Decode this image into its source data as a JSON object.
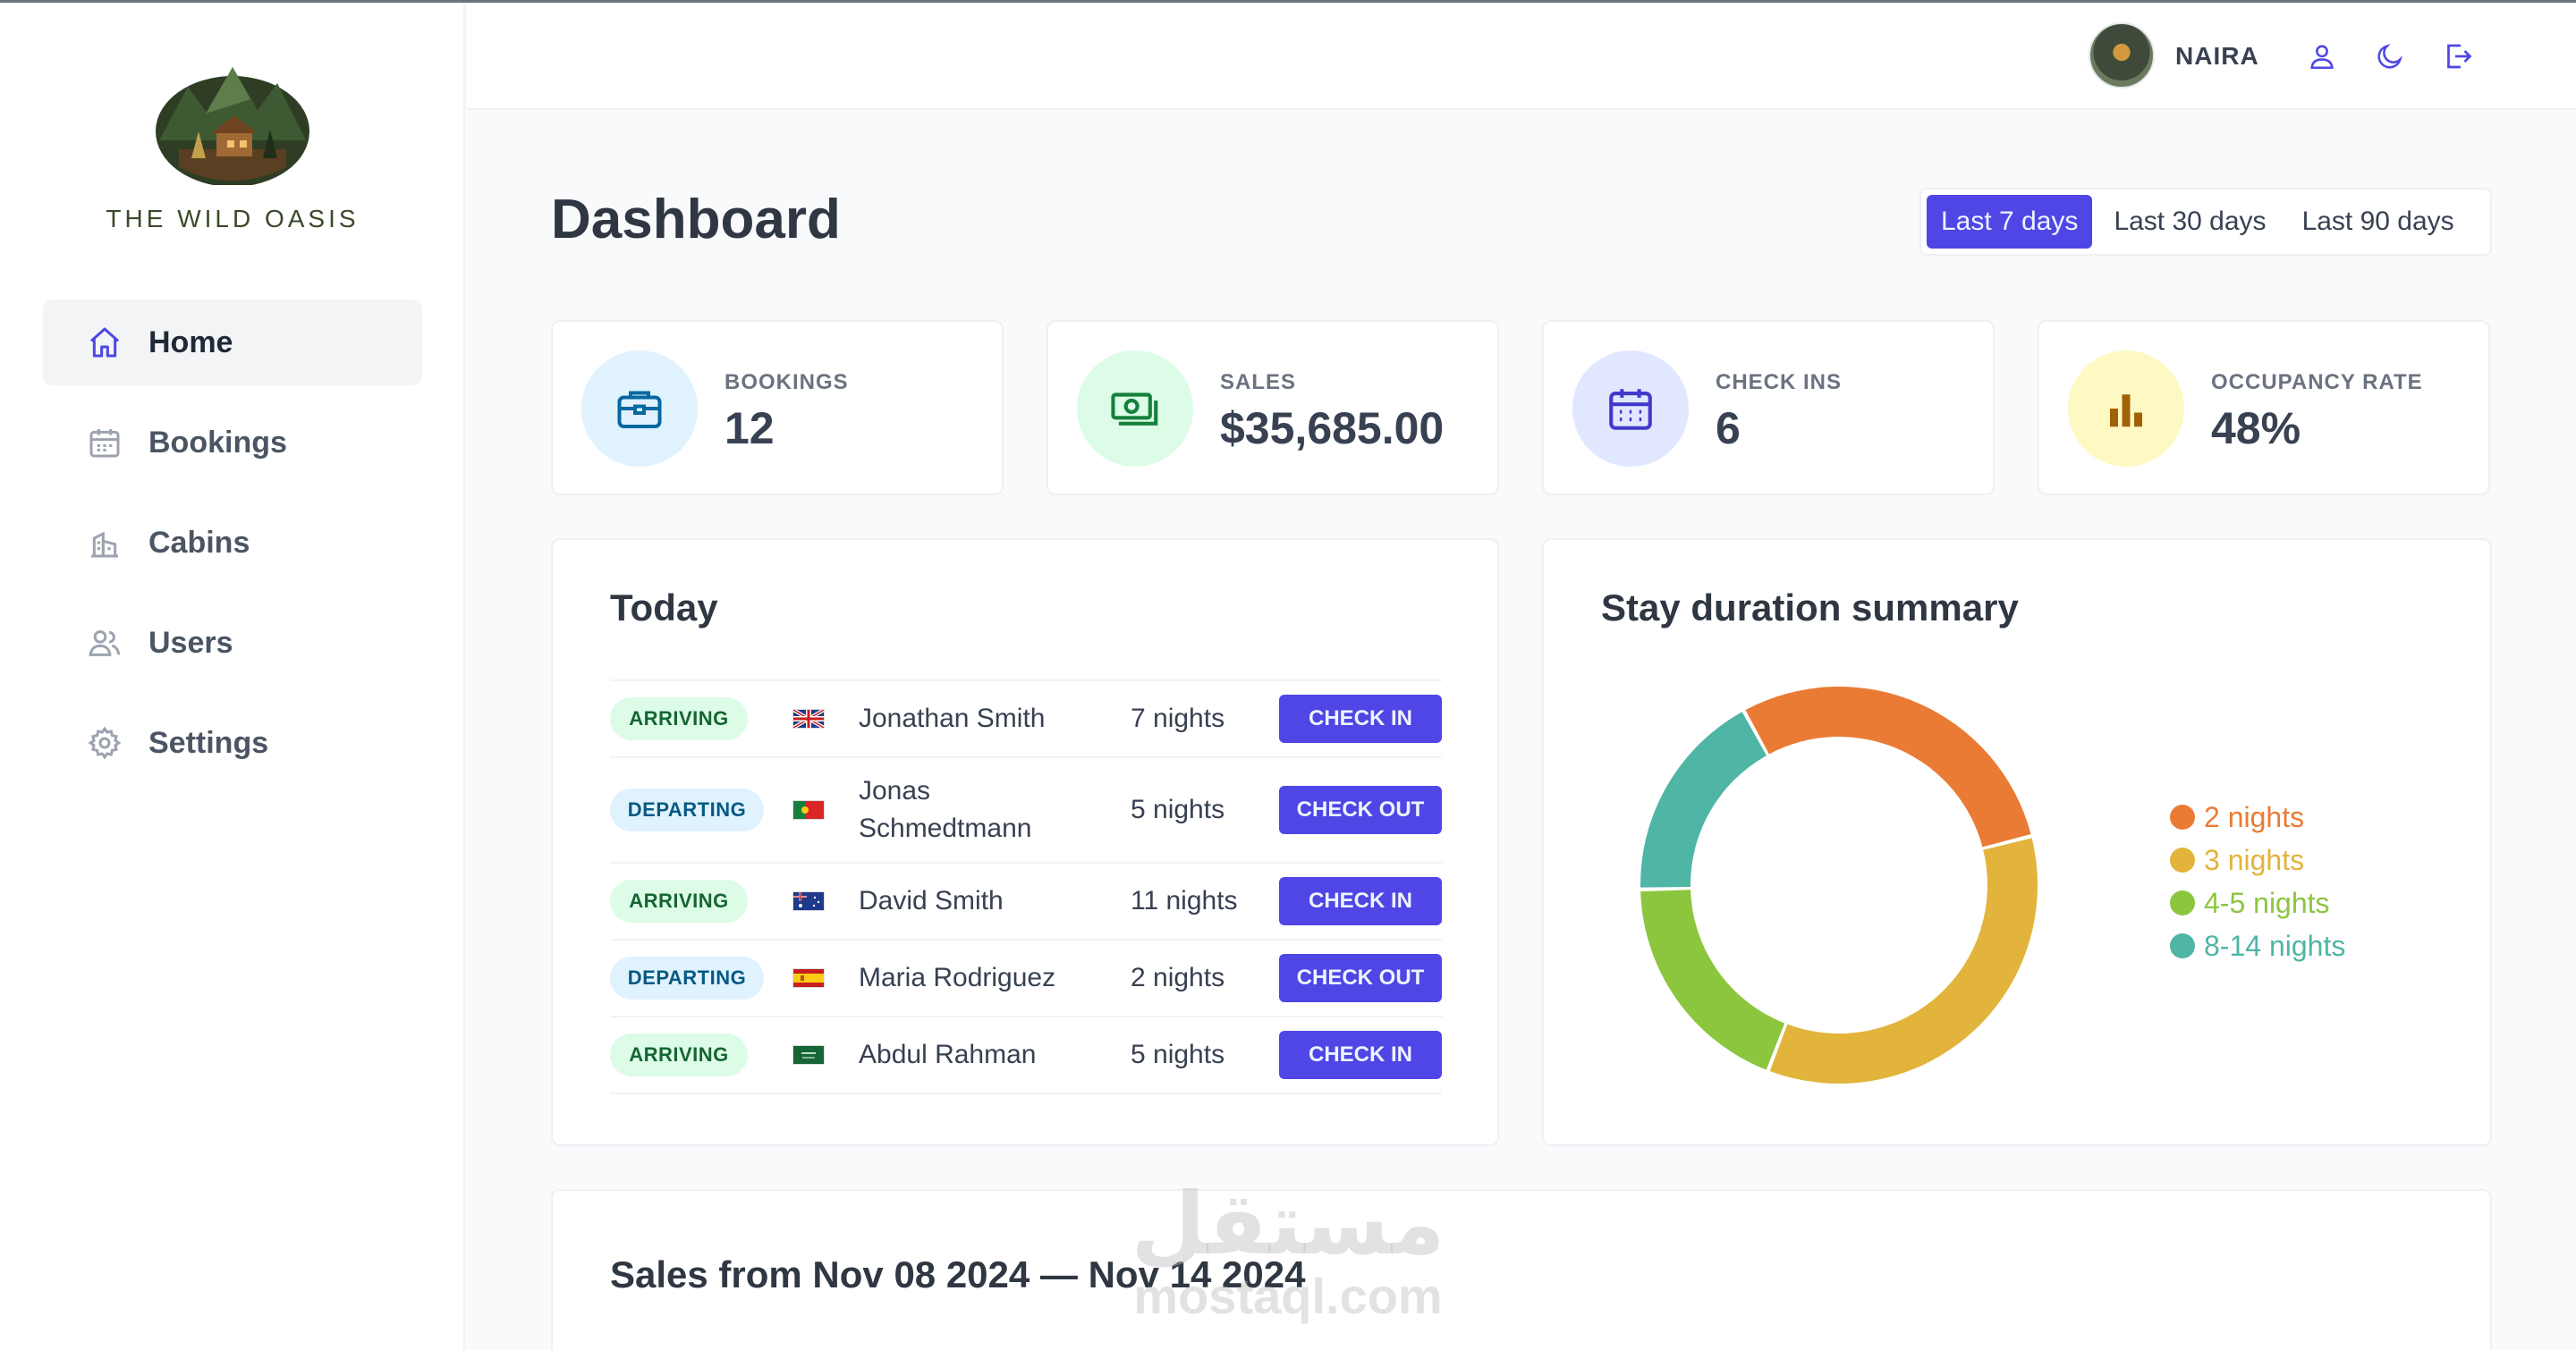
{
  "brand": {
    "name": "THE WILD OASIS"
  },
  "sidebar": {
    "items": [
      {
        "label": "Home",
        "icon": "home-icon",
        "active": true
      },
      {
        "label": "Bookings",
        "icon": "calendar-icon",
        "active": false
      },
      {
        "label": "Cabins",
        "icon": "building-icon",
        "active": false
      },
      {
        "label": "Users",
        "icon": "users-icon",
        "active": false
      },
      {
        "label": "Settings",
        "icon": "gear-icon",
        "active": false
      }
    ]
  },
  "header": {
    "user_name": "NAIRA",
    "buttons": [
      "user-icon",
      "moon-icon",
      "logout-icon"
    ]
  },
  "main": {
    "title": "Dashboard",
    "filters": [
      {
        "label": "Last 7 days",
        "active": true
      },
      {
        "label": "Last 30 days",
        "active": false
      },
      {
        "label": "Last 90 days",
        "active": false
      }
    ],
    "stats": [
      {
        "label": "BOOKINGS",
        "value": "12",
        "icon": "briefcase-icon",
        "bg": "#e0f2fe",
        "color": "#0369a1"
      },
      {
        "label": "SALES",
        "value": "$35,685.00",
        "icon": "banknotes-icon",
        "bg": "#dcfce7",
        "color": "#15803d"
      },
      {
        "label": "CHECK INS",
        "value": "6",
        "icon": "calendar-days-icon",
        "bg": "#e0e7ff",
        "color": "#4338ca"
      },
      {
        "label": "OCCUPANCY RATE",
        "value": "48%",
        "icon": "chart-bar-icon",
        "bg": "#fef9c3",
        "color": "#a16207"
      }
    ],
    "today": {
      "title": "Today",
      "rows": [
        {
          "status": "ARRIVING",
          "flag": "uk-flag-icon",
          "guest": "Jonathan Smith",
          "nights": "7 nights",
          "action": "CHECK IN"
        },
        {
          "status": "DEPARTING",
          "flag": "portugal-flag-icon",
          "guest": "Jonas Schmedtmann",
          "nights": "5 nights",
          "action": "CHECK OUT"
        },
        {
          "status": "ARRIVING",
          "flag": "australia-flag-icon",
          "guest": "David Smith",
          "nights": "11 nights",
          "action": "CHECK IN"
        },
        {
          "status": "DEPARTING",
          "flag": "spain-flag-icon",
          "guest": "Maria Rodriguez",
          "nights": "2 nights",
          "action": "CHECK OUT"
        },
        {
          "status": "ARRIVING",
          "flag": "saudi-flag-icon",
          "guest": "Abdul Rahman",
          "nights": "5 nights",
          "action": "CHECK IN"
        }
      ]
    },
    "stay_summary": {
      "title": "Stay duration summary"
    },
    "sales": {
      "title": "Sales from Nov 08 2024 — Nov 14 2024"
    }
  },
  "watermark": {
    "arabic": "مستقل",
    "latin": "mostaql.com"
  },
  "chart_data": {
    "type": "pie",
    "title": "Stay duration summary",
    "legend_position": "right",
    "categories": [
      "2 nights",
      "3 nights",
      "4-5 nights",
      "8-14 nights"
    ],
    "values": [
      1,
      1.2,
      0.65,
      0.6
    ],
    "colors": [
      "#ea7b35",
      "#e2b43c",
      "#8cc63f",
      "#4fb5a5"
    ]
  }
}
